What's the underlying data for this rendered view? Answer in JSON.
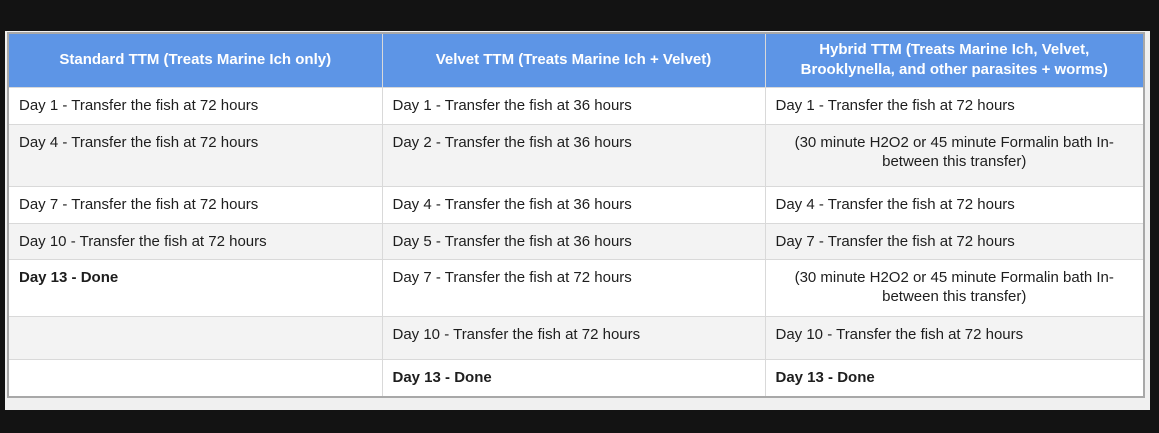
{
  "colors": {
    "page_bg": "#131313",
    "panel_bg": "#f0f0f0",
    "header_bg": "#5d95e6",
    "header_text": "#ffffff",
    "row_bg": "#ffffff",
    "alt_row_bg": "#f3f3f3",
    "border": "#d9d9d9",
    "outer_border": "#a8a8a8",
    "text": "#1e1e1e"
  },
  "table": {
    "headers": [
      "Standard TTM (Treats Marine Ich only)",
      "Velvet TTM (Treats Marine Ich + Velvet)",
      "Hybrid TTM (Treats Marine Ich, Velvet, Brooklynella, and other parasites + worms)"
    ],
    "rows": [
      {
        "cells": [
          {
            "text": "Day 1 - Transfer the fish at 72 hours",
            "bold": false,
            "align": "left"
          },
          {
            "text": "Day 1 - Transfer the fish at 36 hours",
            "bold": false,
            "align": "left"
          },
          {
            "text": "Day 1 - Transfer the fish at 72 hours",
            "bold": false,
            "align": "left"
          }
        ]
      },
      {
        "cells": [
          {
            "text": "Day 4 - Transfer the fish at 72 hours",
            "bold": false,
            "align": "left"
          },
          {
            "text": "Day 2 - Transfer the fish at 36 hours",
            "bold": false,
            "align": "left"
          },
          {
            "text": "(30 minute H2O2 or 45 minute Formalin bath In-between this transfer)",
            "bold": false,
            "align": "center"
          }
        ]
      },
      {
        "cells": [
          {
            "text": "Day 7 - Transfer the fish at 72 hours",
            "bold": false,
            "align": "left"
          },
          {
            "text": "Day 4 - Transfer the fish at 36 hours",
            "bold": false,
            "align": "left"
          },
          {
            "text": "Day 4 - Transfer the fish at 72 hours",
            "bold": false,
            "align": "left"
          }
        ]
      },
      {
        "cells": [
          {
            "text": "Day 10 - Transfer the fish at 72 hours",
            "bold": false,
            "align": "left"
          },
          {
            "text": "Day 5 - Transfer the fish at 36 hours",
            "bold": false,
            "align": "left"
          },
          {
            "text": "Day 7 - Transfer the fish at 72 hours",
            "bold": false,
            "align": "left"
          }
        ]
      },
      {
        "cells": [
          {
            "text": "Day 13 - Done",
            "bold": true,
            "align": "left"
          },
          {
            "text": "Day 7 - Transfer the fish at 72 hours",
            "bold": false,
            "align": "left"
          },
          {
            "text": "(30 minute H2O2 or 45 minute Formalin bath In-between this transfer)",
            "bold": false,
            "align": "center"
          }
        ]
      },
      {
        "cells": [
          {
            "text": "",
            "bold": false,
            "align": "left"
          },
          {
            "text": "Day 10 - Transfer the fish at 72 hours",
            "bold": false,
            "align": "left"
          },
          {
            "text": "Day 10 - Transfer the fish at 72 hours",
            "bold": false,
            "align": "left"
          }
        ]
      },
      {
        "cells": [
          {
            "text": "",
            "bold": false,
            "align": "left"
          },
          {
            "text": "Day 13 - Done",
            "bold": true,
            "align": "left"
          },
          {
            "text": "Day 13 - Done",
            "bold": true,
            "align": "left"
          }
        ]
      }
    ]
  }
}
